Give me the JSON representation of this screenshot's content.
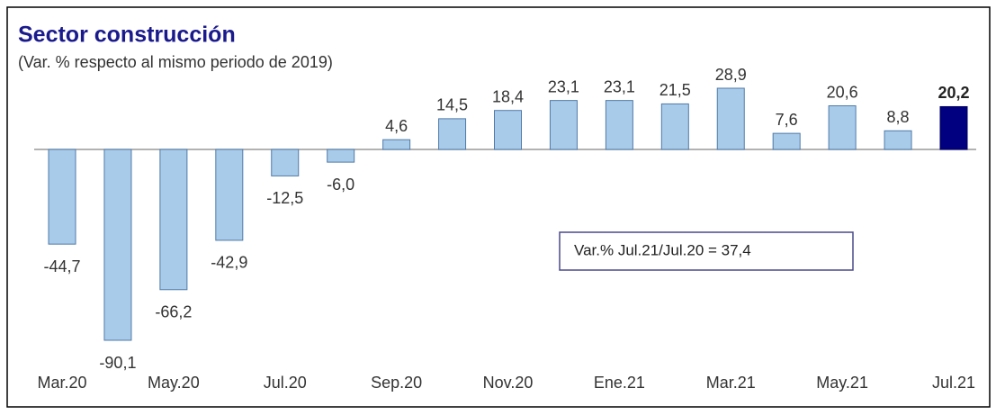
{
  "chart_data": {
    "type": "bar",
    "title": "Sector construcción",
    "subtitle": "(Var. % respecto al mismo periodo de 2019)",
    "annotation": "Var.% Jul.21/Jul.20 = 37,4",
    "categories": [
      "Mar.20",
      null,
      "May.20",
      null,
      "Jul.20",
      null,
      "Sep.20",
      null,
      "Nov.20",
      null,
      "Ene.21",
      null,
      "Mar.21",
      null,
      "May.21",
      null,
      "Jul.21"
    ],
    "values": [
      -44.7,
      -90.1,
      -66.2,
      -42.9,
      -12.5,
      -6.0,
      4.6,
      14.5,
      18.4,
      23.1,
      23.1,
      21.5,
      28.9,
      7.6,
      20.6,
      8.8,
      20.2
    ],
    "value_labels": [
      "-44,7",
      "-90,1",
      "-66,2",
      "-42,9",
      "-12,5",
      "-6,0",
      "4,6",
      "14,5",
      "18,4",
      "23,1",
      "23,1",
      "21,5",
      "28,9",
      "7,6",
      "20,6",
      "8,8",
      "20,2"
    ],
    "colors": [
      "#a9cbea",
      "#a9cbea",
      "#a9cbea",
      "#a9cbea",
      "#a9cbea",
      "#a9cbea",
      "#a9cbea",
      "#a9cbea",
      "#a9cbea",
      "#a9cbea",
      "#a9cbea",
      "#a9cbea",
      "#a9cbea",
      "#a9cbea",
      "#a9cbea",
      "#a9cbea",
      "#000080"
    ]
  }
}
